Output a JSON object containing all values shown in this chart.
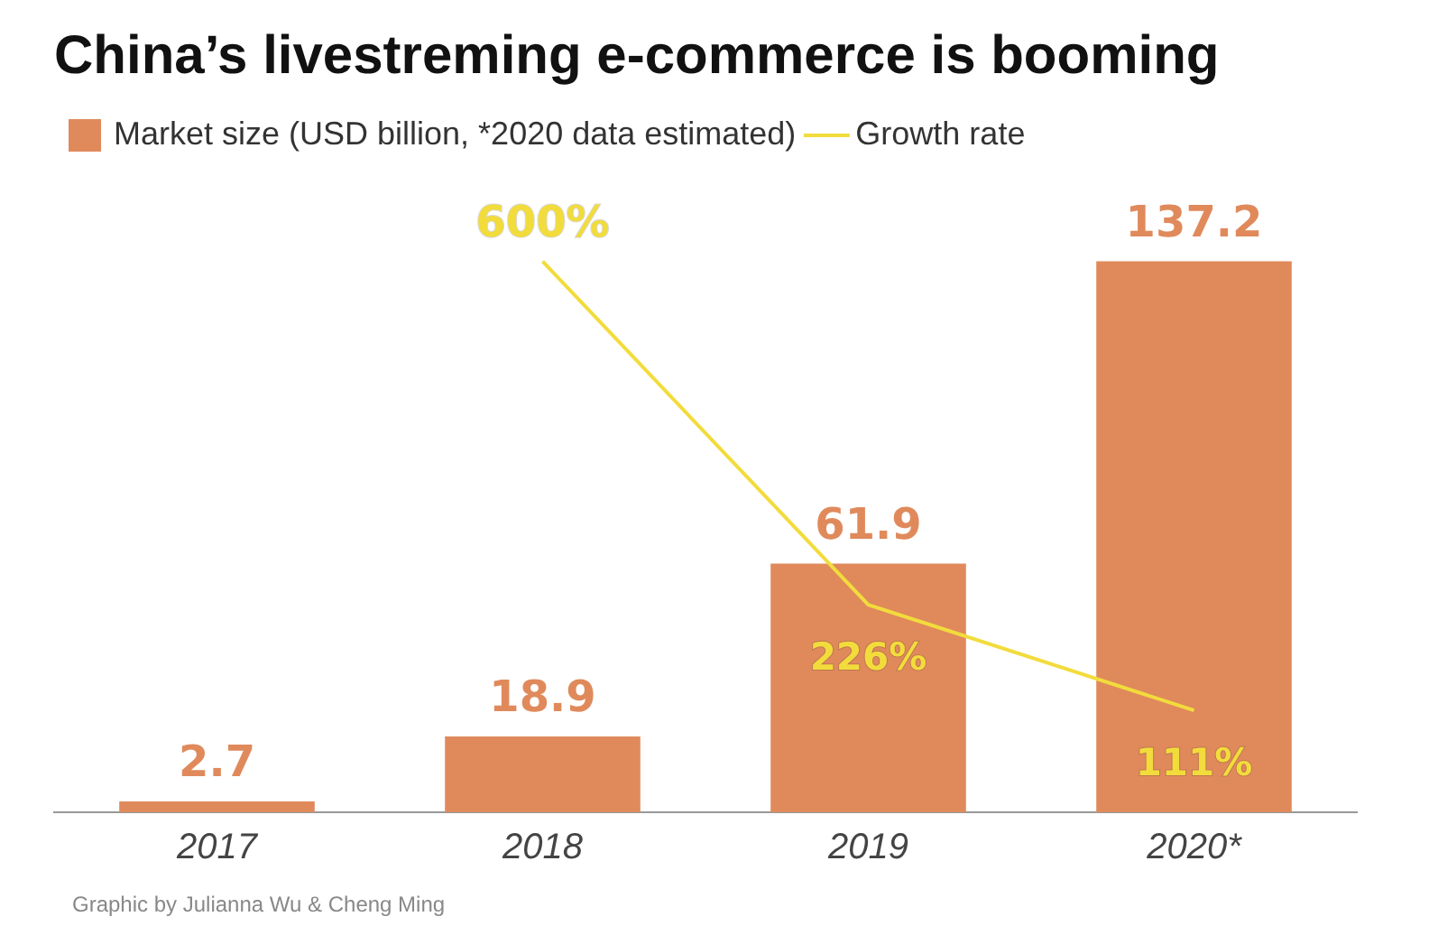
{
  "chart_data": {
    "type": "bar",
    "title": "China’s livestreming e-commerce is booming",
    "categories": [
      "2017",
      "2018",
      "2019",
      "2020*"
    ],
    "series": [
      {
        "name": "Market size (USD billion, *2020 data estimated)",
        "color": "#e08a5c",
        "values": [
          2.7,
          18.9,
          61.9,
          137.2
        ]
      },
      {
        "name": "Growth rate",
        "type": "line",
        "axis": "y2",
        "color": "#f2dc3c",
        "values": [
          null,
          600,
          226,
          111
        ],
        "value_labels": [
          null,
          "600%",
          "226%",
          "111%"
        ]
      }
    ],
    "data_labels": true,
    "legend": "top left",
    "grid": false,
    "marker": "none",
    "annotations": [
      "Graphic by Julianna Wu & Cheng Ming"
    ]
  }
}
